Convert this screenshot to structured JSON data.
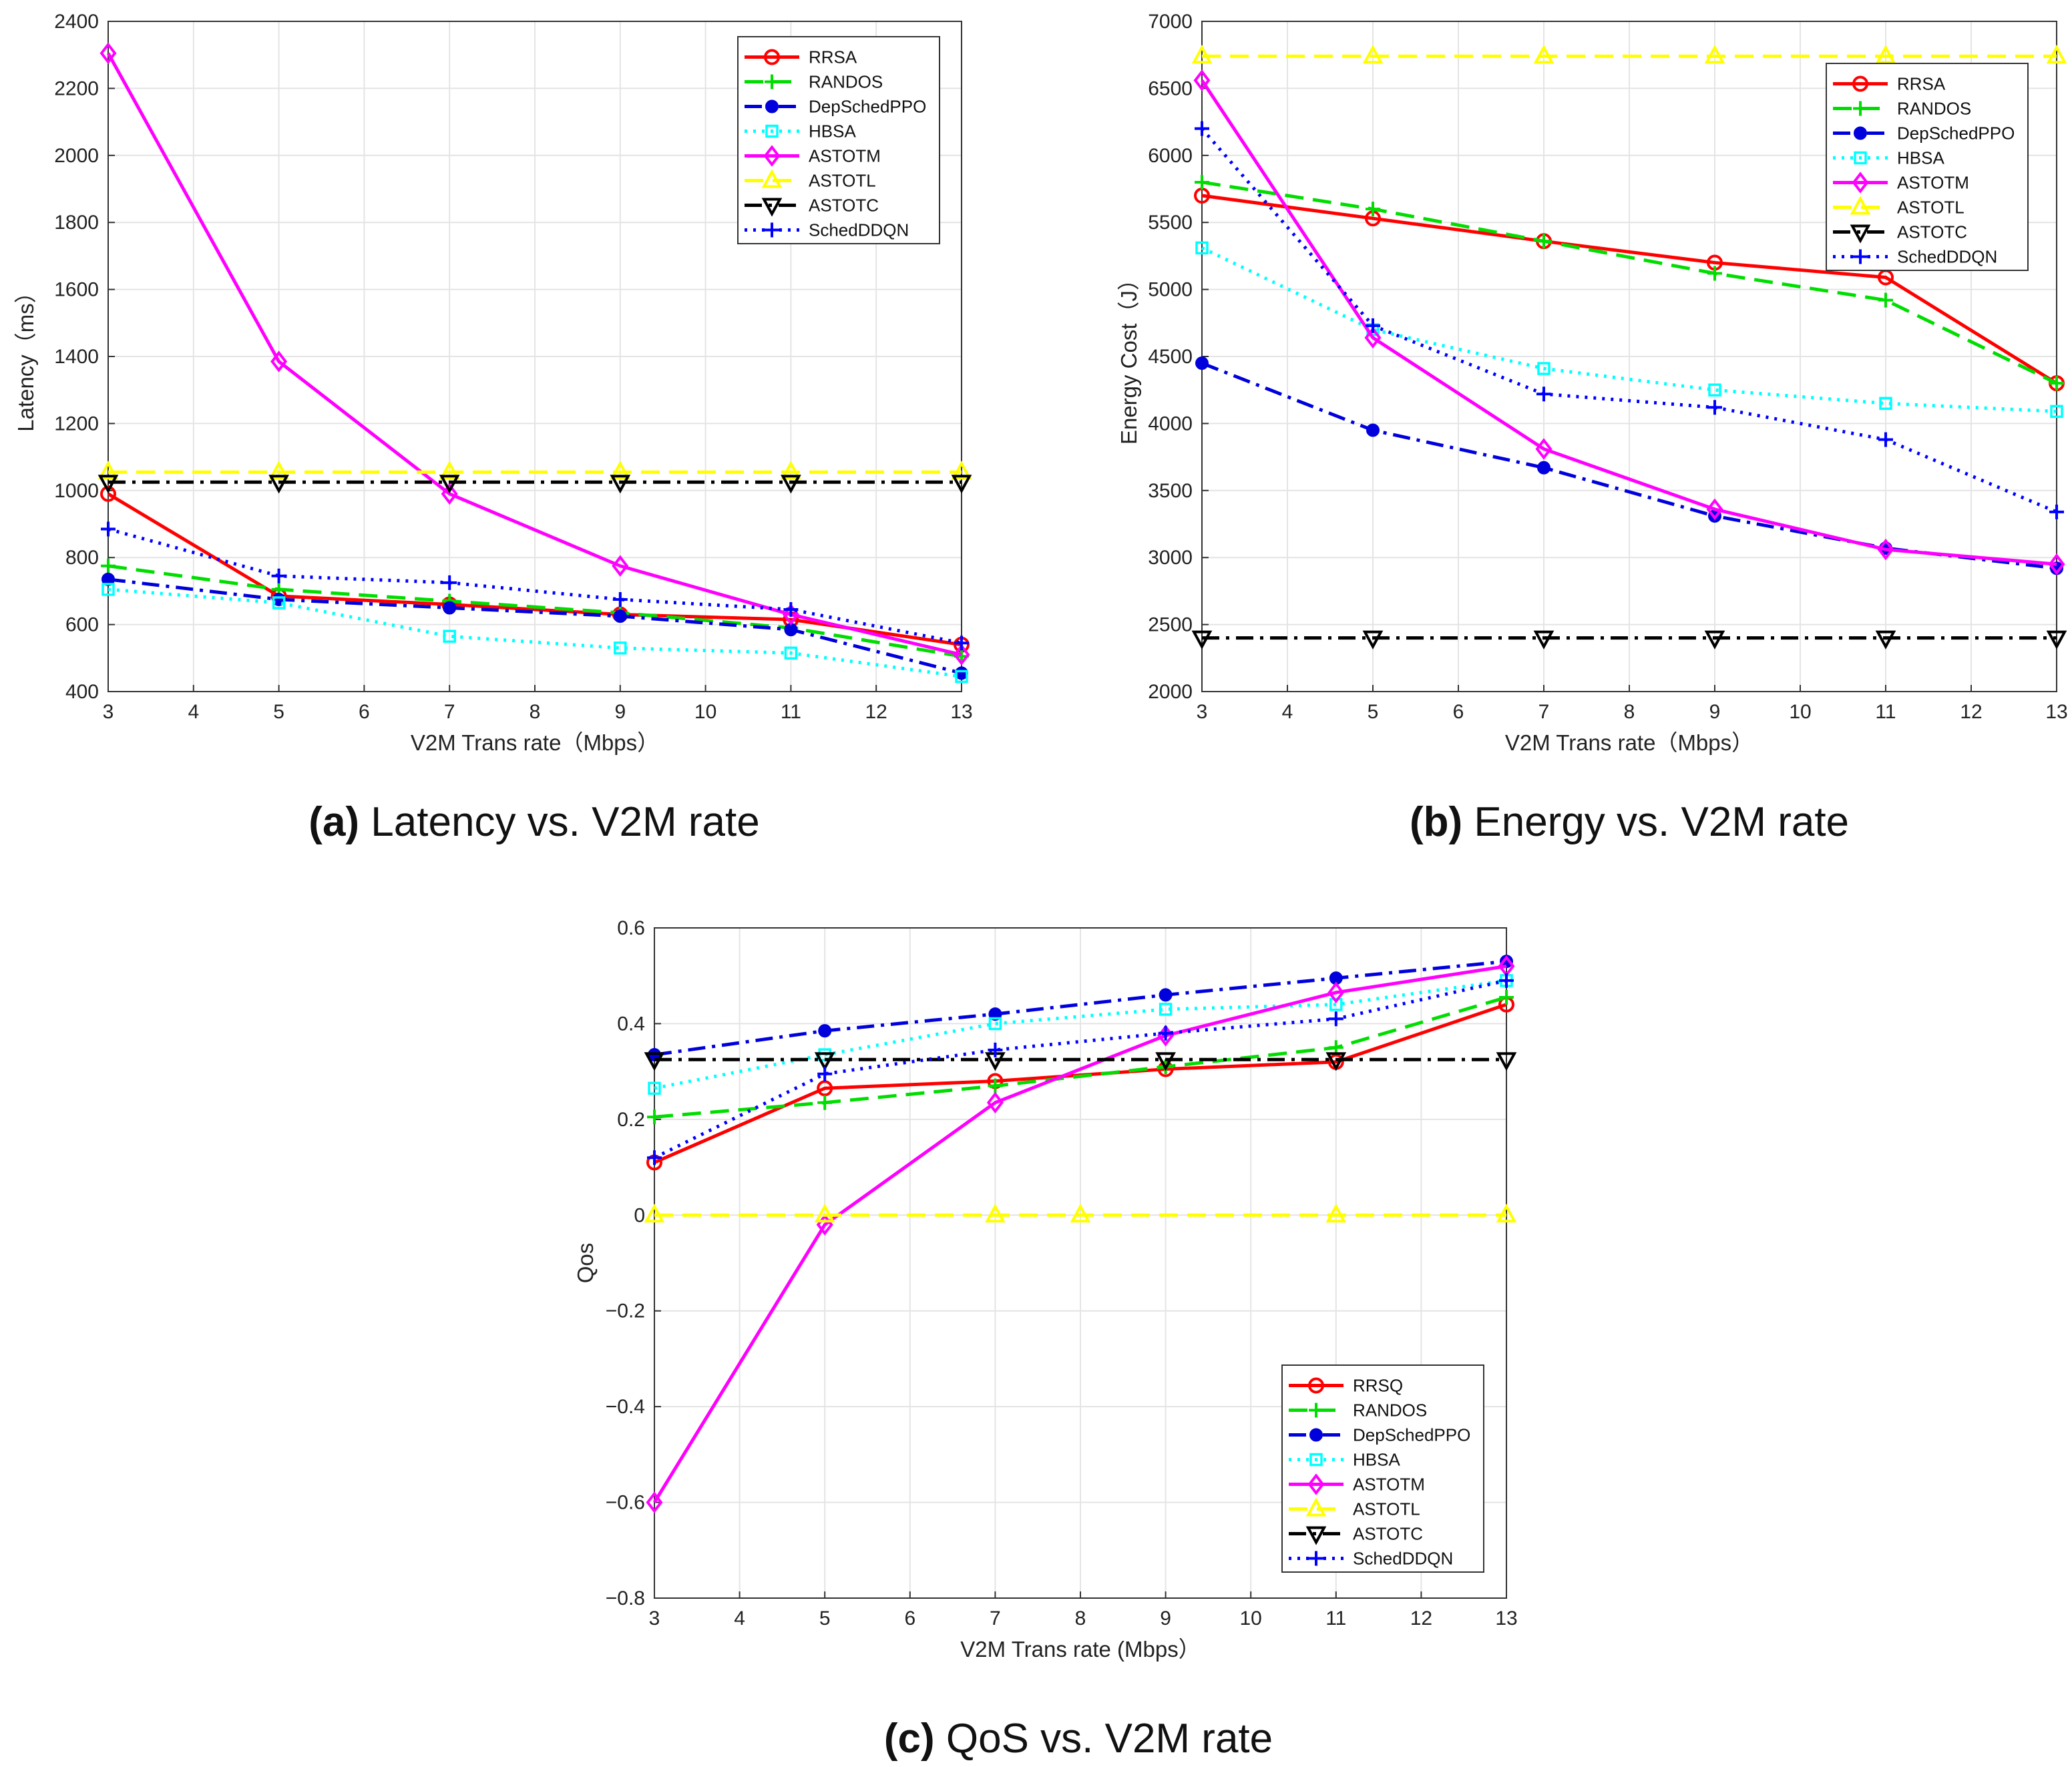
{
  "chart_data": [
    {
      "id": "latency",
      "type": "line",
      "caption_key": "(a)",
      "caption": "Latency vs. V2M rate",
      "xlabel": "V2M Trans rate（Mbps）",
      "ylabel": "Latency（ms）",
      "xlim": [
        3,
        13
      ],
      "ylim": [
        400,
        2400
      ],
      "xticks": [
        3,
        4,
        5,
        6,
        7,
        8,
        9,
        10,
        11,
        12,
        13
      ],
      "yticks": [
        400,
        600,
        800,
        1000,
        1200,
        1400,
        1600,
        1800,
        2000,
        2200,
        2400
      ],
      "grid": true,
      "legend_position": "top-right",
      "x": [
        3,
        5,
        7,
        9,
        11,
        13
      ],
      "series": [
        {
          "name": "RRSA",
          "color": "#ff0000",
          "dash": "solid",
          "marker": "circle",
          "values": [
            990,
            685,
            660,
            630,
            615,
            540
          ]
        },
        {
          "name": "RANDOS",
          "color": "#00dd00",
          "dash": "dashed",
          "marker": "plus",
          "values": [
            775,
            705,
            670,
            635,
            590,
            505
          ]
        },
        {
          "name": "DepSchedPPO",
          "color": "#0000dd",
          "dash": "dashdot",
          "marker": "dot",
          "values": [
            735,
            675,
            650,
            625,
            585,
            455
          ]
        },
        {
          "name": "HBSA",
          "color": "#00ffff",
          "dash": "dotted",
          "marker": "square",
          "values": [
            705,
            665,
            565,
            530,
            515,
            445
          ]
        },
        {
          "name": "ASTOTM",
          "color": "#ff00ff",
          "dash": "solid",
          "marker": "diamond",
          "values": [
            2305,
            1385,
            990,
            775,
            630,
            510
          ]
        },
        {
          "name": "ASTOTL",
          "color": "#ffff00",
          "dash": "dashed",
          "marker": "triangle-up",
          "values": [
            1055,
            1055,
            1055,
            1055,
            1055,
            1055
          ]
        },
        {
          "name": "ASTOTC",
          "color": "#000000",
          "dash": "dashdot",
          "marker": "triangle-down",
          "values": [
            1025,
            1025,
            1025,
            1025,
            1025,
            1025
          ]
        },
        {
          "name": "SchedDDQN",
          "color": "#0000ff",
          "dash": "dotted",
          "marker": "plus",
          "values": [
            885,
            745,
            725,
            675,
            645,
            545
          ]
        }
      ]
    },
    {
      "id": "energy",
      "type": "line",
      "caption_key": "(b)",
      "caption": "Energy vs. V2M rate",
      "xlabel": "V2M Trans rate（Mbps）",
      "ylabel": "Energy Cost（J）",
      "xlim": [
        3,
        13
      ],
      "ylim": [
        2000,
        7000
      ],
      "xticks": [
        3,
        4,
        5,
        6,
        7,
        8,
        9,
        10,
        11,
        12,
        13
      ],
      "yticks": [
        2000,
        2500,
        3000,
        3500,
        4000,
        4500,
        5000,
        5500,
        6000,
        6500,
        7000
      ],
      "grid": true,
      "legend_position": "top-right",
      "x": [
        3,
        5,
        7,
        9,
        11,
        13
      ],
      "series": [
        {
          "name": "RRSA",
          "color": "#ff0000",
          "dash": "solid",
          "marker": "circle",
          "values": [
            5700,
            5530,
            5360,
            5200,
            5090,
            4300
          ]
        },
        {
          "name": "RANDOS",
          "color": "#00dd00",
          "dash": "dashed",
          "marker": "plus",
          "values": [
            5800,
            5600,
            5360,
            5120,
            4920,
            4300
          ]
        },
        {
          "name": "DepSchedPPO",
          "color": "#0000dd",
          "dash": "dashdot",
          "marker": "dot",
          "values": [
            4450,
            3950,
            3670,
            3310,
            3070,
            2920
          ]
        },
        {
          "name": "HBSA",
          "color": "#00ffff",
          "dash": "dotted",
          "marker": "square",
          "values": [
            5310,
            4700,
            4410,
            4250,
            4150,
            4090
          ]
        },
        {
          "name": "ASTOTM",
          "color": "#ff00ff",
          "dash": "solid",
          "marker": "diamond",
          "values": [
            6560,
            4640,
            3810,
            3360,
            3060,
            2950
          ]
        },
        {
          "name": "ASTOTL",
          "color": "#ffff00",
          "dash": "dashed",
          "marker": "triangle-up",
          "values": [
            6740,
            6740,
            6740,
            6740,
            6740,
            6740
          ]
        },
        {
          "name": "ASTOTC",
          "color": "#000000",
          "dash": "dashdot",
          "marker": "triangle-down",
          "values": [
            2400,
            2400,
            2400,
            2400,
            2400,
            2400
          ]
        },
        {
          "name": "SchedDDQN",
          "color": "#0000ff",
          "dash": "dotted",
          "marker": "plus",
          "values": [
            6200,
            4730,
            4220,
            4120,
            3880,
            3340
          ]
        }
      ]
    },
    {
      "id": "qos",
      "type": "line",
      "caption_key": "(c)",
      "caption": "QoS vs. V2M rate",
      "xlabel": "V2M Trans rate (Mbps）",
      "ylabel": "Qos",
      "xlim": [
        3,
        13
      ],
      "ylim": [
        -0.8,
        0.6
      ],
      "xticks": [
        3,
        4,
        5,
        6,
        7,
        8,
        9,
        10,
        11,
        12,
        13
      ],
      "yticks": [
        -0.8,
        -0.6,
        -0.4,
        -0.2,
        0,
        0.2,
        0.4,
        0.6
      ],
      "ytick_labels": [
        "−0.8",
        "−0.6",
        "−0.4",
        "−0.2",
        "0",
        "0.2",
        "0.4",
        "0.6"
      ],
      "grid": true,
      "legend_position": "bottom-right",
      "x": [
        3,
        5,
        7,
        9,
        11,
        13
      ],
      "series": [
        {
          "name": "RRSQ",
          "color": "#ff0000",
          "dash": "solid",
          "marker": "circle",
          "values": [
            0.11,
            0.265,
            0.28,
            0.305,
            0.32,
            0.44
          ]
        },
        {
          "name": "RANDOS",
          "color": "#00dd00",
          "dash": "dashed",
          "marker": "plus",
          "values": [
            0.205,
            0.235,
            0.27,
            0.31,
            0.35,
            0.455
          ]
        },
        {
          "name": "DepSchedPPO",
          "color": "#0000dd",
          "dash": "dashdot",
          "marker": "dot",
          "values": [
            0.335,
            0.385,
            0.42,
            0.46,
            0.495,
            0.53
          ]
        },
        {
          "name": "HBSA",
          "color": "#00ffff",
          "dash": "dotted",
          "marker": "square",
          "values": [
            0.265,
            0.335,
            0.4,
            0.43,
            0.44,
            0.49
          ]
        },
        {
          "name": "ASTOTM",
          "color": "#ff00ff",
          "dash": "solid",
          "marker": "diamond",
          "values": [
            -0.6,
            -0.02,
            0.235,
            0.375,
            0.465,
            0.52
          ]
        },
        {
          "name": "ASTOTL",
          "color": "#ffff00",
          "dash": "dashed",
          "marker": "triangle-up",
          "x": [
            3,
            5,
            7,
            8,
            11,
            13
          ],
          "values": [
            0.0,
            0.0,
            0.0,
            0.0,
            0.0,
            0.0
          ]
        },
        {
          "name": "ASTOTC",
          "color": "#000000",
          "dash": "dashdot",
          "marker": "triangle-down",
          "values": [
            0.325,
            0.325,
            0.325,
            0.325,
            0.325,
            0.325
          ]
        },
        {
          "name": "SchedDDQN",
          "color": "#0000ff",
          "dash": "dotted",
          "marker": "plus",
          "values": [
            0.12,
            0.295,
            0.345,
            0.38,
            0.41,
            0.49
          ]
        }
      ]
    }
  ]
}
